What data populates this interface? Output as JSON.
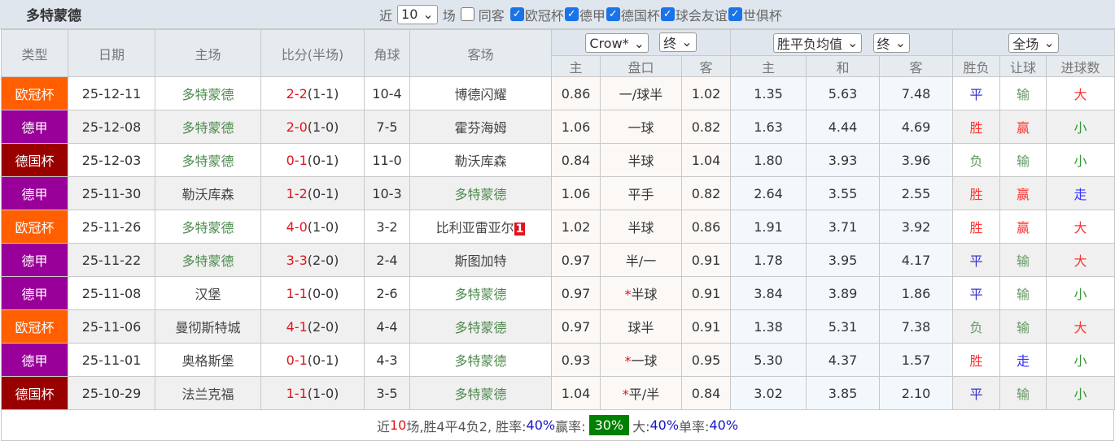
{
  "header": {
    "title": "多特蒙德",
    "recent_label": "近",
    "recent_value": "10",
    "games_label": "场",
    "same_label": "同客",
    "filters": [
      {
        "label": "欧冠杯",
        "checked": true
      },
      {
        "label": "德甲",
        "checked": true
      },
      {
        "label": "德国杯",
        "checked": true
      },
      {
        "label": "球会友谊",
        "checked": true
      },
      {
        "label": "世俱杯",
        "checked": true
      }
    ]
  },
  "columns": {
    "type": "类型",
    "date": "日期",
    "home": "主场",
    "score": "比分(半场)",
    "corner": "角球",
    "away": "客场",
    "company_select": "Crow*",
    "odds_time_select": "终",
    "euro_select": "胜平负均值",
    "euro_time_select": "终",
    "period_select": "全场",
    "ah_home": "主",
    "ah_line": "盘口",
    "ah_away": "客",
    "eu_home": "主",
    "eu_draw": "和",
    "eu_away": "客",
    "result": "胜负",
    "handicap": "让球",
    "goals": "进球数"
  },
  "colors": {
    "欧冠杯": "#ff5f00",
    "德甲": "#990099",
    "德国杯": "#990000",
    "胜": "#ff3333",
    "平": "#3333cc",
    "负": "#669966",
    "赢": "#ff3333",
    "输": "#669966",
    "走": "#3333ff",
    "大": "#ff3333",
    "小": "#339933"
  },
  "rows": [
    {
      "league": "欧冠杯",
      "date": "25-12-11",
      "home": "多特蒙德",
      "ft": "2-2",
      "ht": "(1-1)",
      "corner": "10-4",
      "away": "博德闪耀",
      "badge": "",
      "ah_h": "0.86",
      "star": "",
      "line": "一/球半",
      "ah_a": "1.02",
      "eu_h": "1.35",
      "eu_d": "5.63",
      "eu_a": "7.48",
      "res": "平",
      "hc": "输",
      "goals": "大"
    },
    {
      "league": "德甲",
      "date": "25-12-08",
      "home": "多特蒙德",
      "ft": "2-0",
      "ht": "(1-0)",
      "corner": "7-5",
      "away": "霍芬海姆",
      "badge": "",
      "ah_h": "1.06",
      "star": "",
      "line": "一球",
      "ah_a": "0.82",
      "eu_h": "1.63",
      "eu_d": "4.44",
      "eu_a": "4.69",
      "res": "胜",
      "hc": "赢",
      "goals": "小"
    },
    {
      "league": "德国杯",
      "date": "25-12-03",
      "home": "多特蒙德",
      "ft": "0-1",
      "ht": "(0-1)",
      "corner": "11-0",
      "away": "勒沃库森",
      "badge": "",
      "ah_h": "0.84",
      "star": "",
      "line": "半球",
      "ah_a": "1.04",
      "eu_h": "1.80",
      "eu_d": "3.93",
      "eu_a": "3.96",
      "res": "负",
      "hc": "输",
      "goals": "小"
    },
    {
      "league": "德甲",
      "date": "25-11-30",
      "home": "勒沃库森",
      "ft": "1-2",
      "ht": "(0-1)",
      "corner": "10-3",
      "away": "多特蒙德",
      "badge": "",
      "ah_h": "1.06",
      "star": "",
      "line": "平手",
      "ah_a": "0.82",
      "eu_h": "2.64",
      "eu_d": "3.55",
      "eu_a": "2.55",
      "res": "胜",
      "hc": "赢",
      "goals": "走"
    },
    {
      "league": "欧冠杯",
      "date": "25-11-26",
      "home": "多特蒙德",
      "ft": "4-0",
      "ht": "(1-0)",
      "corner": "3-2",
      "away": "比利亚雷亚尔",
      "badge": "1",
      "ah_h": "1.02",
      "star": "",
      "line": "半球",
      "ah_a": "0.86",
      "eu_h": "1.91",
      "eu_d": "3.71",
      "eu_a": "3.92",
      "res": "胜",
      "hc": "赢",
      "goals": "大"
    },
    {
      "league": "德甲",
      "date": "25-11-22",
      "home": "多特蒙德",
      "ft": "3-3",
      "ht": "(2-0)",
      "corner": "2-4",
      "away": "斯图加特",
      "badge": "",
      "ah_h": "0.97",
      "star": "",
      "line": "半/一",
      "ah_a": "0.91",
      "eu_h": "1.78",
      "eu_d": "3.95",
      "eu_a": "4.17",
      "res": "平",
      "hc": "输",
      "goals": "大"
    },
    {
      "league": "德甲",
      "date": "25-11-08",
      "home": "汉堡",
      "ft": "1-1",
      "ht": "(0-0)",
      "corner": "2-6",
      "away": "多特蒙德",
      "badge": "",
      "ah_h": "0.97",
      "star": "*",
      "line": "半球",
      "ah_a": "0.91",
      "eu_h": "3.84",
      "eu_d": "3.89",
      "eu_a": "1.86",
      "res": "平",
      "hc": "输",
      "goals": "小"
    },
    {
      "league": "欧冠杯",
      "date": "25-11-06",
      "home": "曼彻斯特城",
      "ft": "4-1",
      "ht": "(2-0)",
      "corner": "4-4",
      "away": "多特蒙德",
      "badge": "",
      "ah_h": "0.97",
      "star": "",
      "line": "球半",
      "ah_a": "0.91",
      "eu_h": "1.38",
      "eu_d": "5.31",
      "eu_a": "7.38",
      "res": "负",
      "hc": "输",
      "goals": "大"
    },
    {
      "league": "德甲",
      "date": "25-11-01",
      "home": "奥格斯堡",
      "ft": "0-1",
      "ht": "(0-1)",
      "corner": "4-3",
      "away": "多特蒙德",
      "badge": "",
      "ah_h": "0.93",
      "star": "*",
      "line": "一球",
      "ah_a": "0.95",
      "eu_h": "5.30",
      "eu_d": "4.37",
      "eu_a": "1.57",
      "res": "胜",
      "hc": "走",
      "goals": "小"
    },
    {
      "league": "德国杯",
      "date": "25-10-29",
      "home": "法兰克福",
      "ft": "1-1",
      "ht": "(1-0)",
      "corner": "3-5",
      "away": "多特蒙德",
      "badge": "",
      "ah_h": "1.04",
      "star": "*",
      "line": "平/半",
      "ah_a": "0.84",
      "eu_h": "3.02",
      "eu_d": "3.85",
      "eu_a": "2.10",
      "res": "平",
      "hc": "输",
      "goals": "小"
    }
  ],
  "summary": {
    "prefix": "近",
    "count": "10",
    "text1": "场,胜4平4负2, 胜率:",
    "win_rate": "40%",
    "text2": " 赢率:",
    "cover_rate": "30%",
    "text3": " 大:",
    "over_rate": "40%",
    "text4": " 单率:",
    "odd_rate": "40%"
  }
}
